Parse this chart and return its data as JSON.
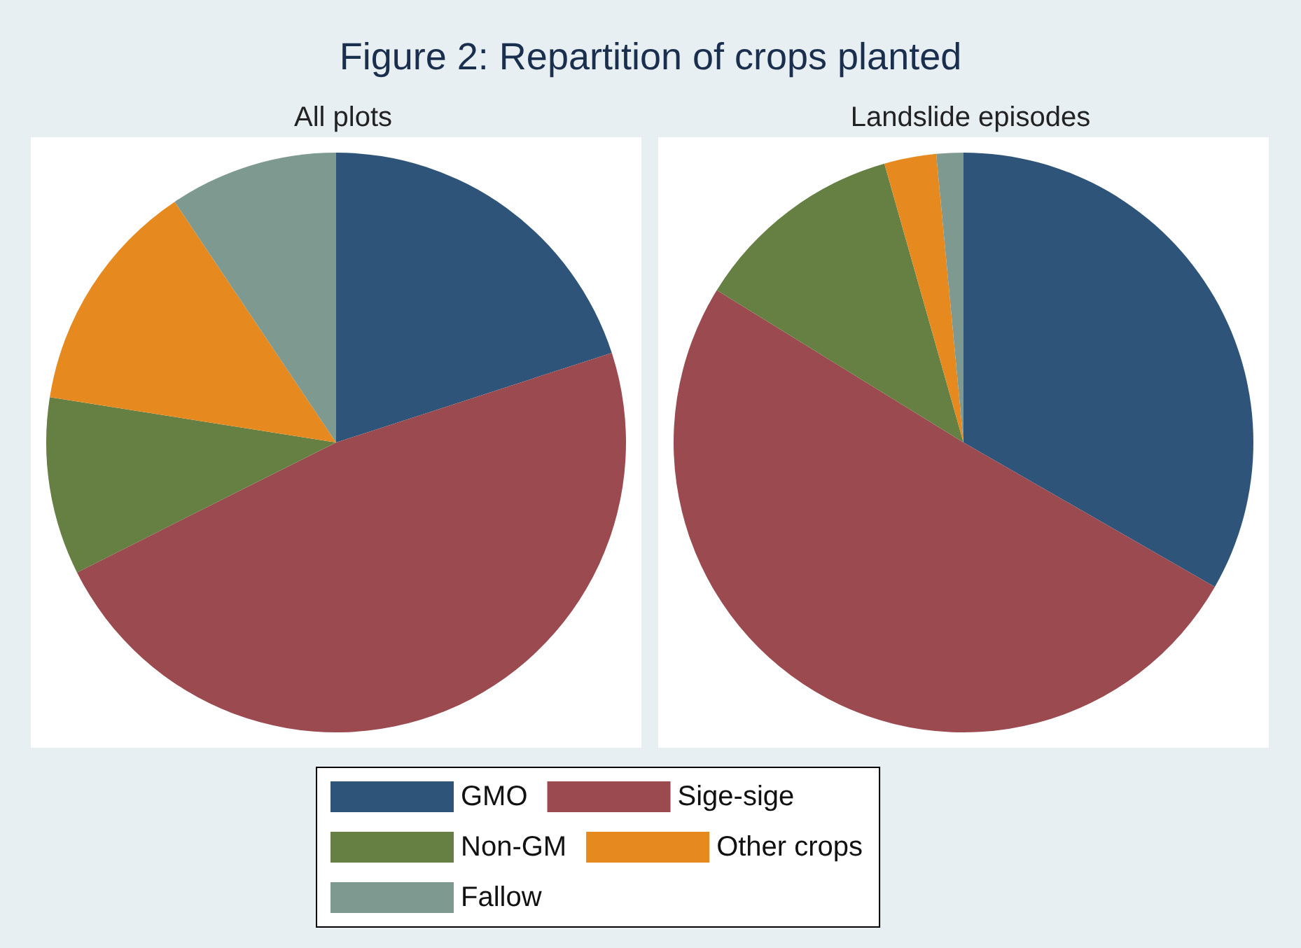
{
  "chart_data": [
    {
      "type": "pie",
      "title": "Figure 2: Repartition of crops planted",
      "subtitle": "All plots",
      "categories": [
        "GMO",
        "Sige-sige",
        "Non-GM",
        "Other crops",
        "Fallow"
      ],
      "values": [
        20,
        47.6,
        9.9,
        13.1,
        9.4
      ],
      "colors": [
        "#2e5579",
        "#9b4a4f",
        "#667f42",
        "#e68a1f",
        "#7e998f"
      ],
      "legend": "bottom"
    },
    {
      "type": "pie",
      "subtitle": "Landslide episodes",
      "categories": [
        null,
        null,
        null,
        null,
        null
      ],
      "values": [
        33.3,
        50.5,
        11.8,
        2.9,
        1.5
      ],
      "colors": [
        "#2e5579",
        "#9b4a4f",
        "#667f42",
        "#e68a1f",
        "#7e998f"
      ]
    }
  ]
}
